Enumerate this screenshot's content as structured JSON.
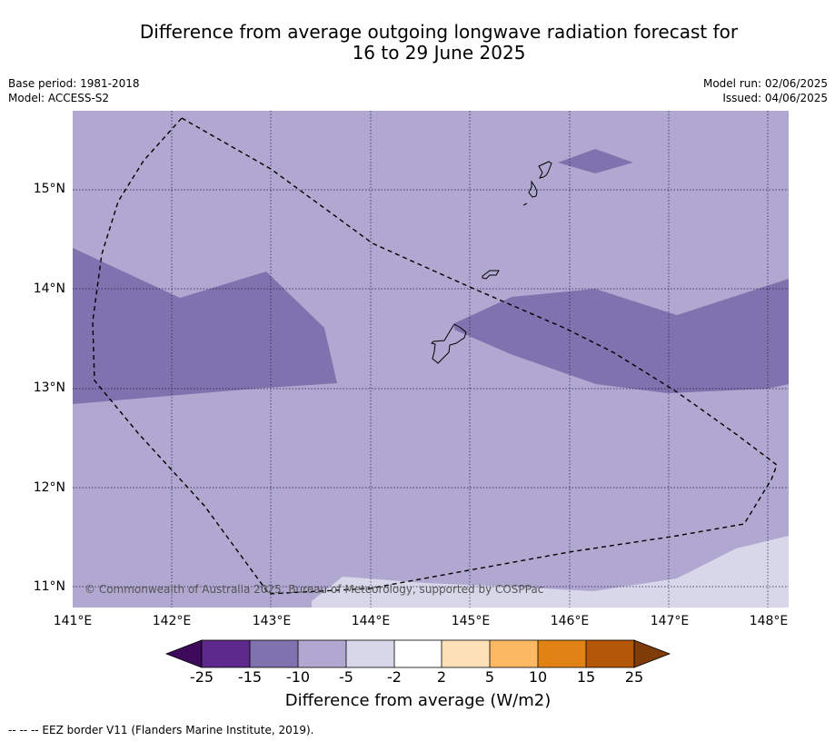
{
  "title": {
    "line1": "Difference from average outgoing longwave radiation forecast for",
    "line2": "16 to 29 June 2025"
  },
  "meta": {
    "base_period": "Base period: 1981-2018",
    "model": "Model: ACCESS-S2",
    "model_run": "Model run: 02/06/2025",
    "issued": "Issued: 04/06/2025"
  },
  "map": {
    "lat_labels": [
      "15°N",
      "14°N",
      "13°N",
      "12°N",
      "11°N"
    ],
    "lon_labels": [
      "141°E",
      "142°E",
      "143°E",
      "144°E",
      "145°E",
      "146°E",
      "147°E",
      "148°E"
    ],
    "copyright": "© Commonwealth of Australia 2025, Bureau of Meteorology, supported by COSPPac",
    "colors": {
      "class_minus5_minus10": "#b0a8d0",
      "class_minus10_minus15": "#8072ae",
      "class_minus2_minus5": "#d8d7ea",
      "coastline": "#000000",
      "gridline": "#1a1a40"
    }
  },
  "colorbar": {
    "labels": [
      "-25",
      "-15",
      "-10",
      "-5",
      "-2",
      "2",
      "5",
      "10",
      "15",
      "25"
    ],
    "colors": [
      "#3e0a5c",
      "#5d2a8c",
      "#8072ae",
      "#b0a8d0",
      "#d8d7ea",
      "#ffffff",
      "#fee0b6",
      "#fdb863",
      "#e08214",
      "#b35806",
      "#7f3b08"
    ],
    "title": "Difference from average (W/m2)"
  },
  "legend": {
    "eez_note": "--  --  -- EEZ border V11 (Flanders Marine Institute, 2019)."
  }
}
